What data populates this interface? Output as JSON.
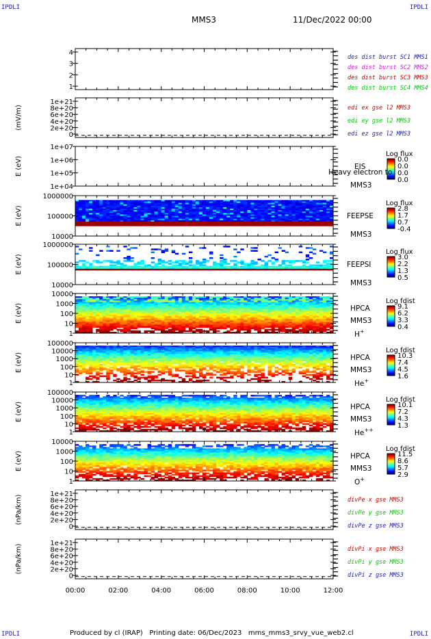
{
  "header": {
    "corner_label": "IPDLI",
    "title": "MMS3",
    "date": "11/Dec/2022 00:00"
  },
  "footer": {
    "produced": "Produced by cl (IRAP)",
    "printing": "Printing date: 06/Dec/2023",
    "file": "mms_mms3_srvy_vue_web2.cl"
  },
  "chart_data": {
    "type": "heatmap",
    "x_ticks": [
      "00:00",
      "02:00",
      "04:00",
      "06:00",
      "08:00",
      "10:00",
      "12:00"
    ],
    "panels": [
      {
        "kind": "lines",
        "ylabel": "",
        "yticks": [
          "4",
          "3",
          "2",
          "1"
        ],
        "legend": [
          {
            "text": "des dist burst SC1 MMS1",
            "color": "#1a1ab4"
          },
          {
            "text": "des dist burst SC2 MMS2",
            "color": "#d21ed2"
          },
          {
            "text": "des dist burst SC3 MMS3",
            "color": "#c80000"
          },
          {
            "text": "des dist burst SC4 MMS4",
            "color": "#00c800"
          }
        ]
      },
      {
        "kind": "lines",
        "ylabel": "(mV/m)",
        "yticks": [
          "1e+21",
          "8e+20",
          "6e+20",
          "4e+20",
          "2e+20",
          "0"
        ],
        "legend": [
          {
            "text": "edi ex gse l2 MMS3",
            "color": "#c80000"
          },
          {
            "text": "edi ey gse l2 MMS3",
            "color": "#00c800"
          },
          {
            "text": "edi ez gse l2 MMS3",
            "color": "#1a1ab4"
          }
        ]
      },
      {
        "kind": "spectro",
        "ylabel": "E (eV)",
        "yticks": [
          "1e+07",
          "1e+06",
          "1e+05",
          "1e+04"
        ],
        "instrument": [
          "EIS",
          "MMS3"
        ],
        "species": "",
        "overlay": "Heavy electron to",
        "cbar_title": "Log flux",
        "cbar_ticks": [
          "0.0",
          "0.0",
          "0.0",
          "0.0"
        ]
      },
      {
        "kind": "spectro",
        "ylabel": "E (eV)",
        "yticks": [
          "1000000",
          "100000",
          "10000"
        ],
        "instrument": [
          "FEEPSE",
          "MMS3"
        ],
        "species": "",
        "cbar_title": "Log flux",
        "cbar_ticks": [
          "2.8",
          "1.7",
          "0.7",
          "-0.4"
        ]
      },
      {
        "kind": "spectro",
        "ylabel": "E (eV)",
        "yticks": [
          "1000000",
          "100000",
          "10000"
        ],
        "instrument": [
          "FEEPSI",
          "MMS3"
        ],
        "species": "",
        "cbar_title": "Log flux",
        "cbar_ticks": [
          "3.0",
          "2.2",
          "1.3",
          "0.5"
        ]
      },
      {
        "kind": "spectro",
        "ylabel": "E (eV)",
        "yticks": [
          "10000",
          "1000",
          "100",
          "10",
          "1"
        ],
        "instrument": [
          "HPCA",
          "MMS3"
        ],
        "species": "H+",
        "cbar_title": "Log fdist",
        "cbar_ticks": [
          "9.1",
          "6.2",
          "3.3",
          "0.4"
        ]
      },
      {
        "kind": "spectro",
        "ylabel": "E (eV)",
        "yticks": [
          "100000",
          "10000",
          "1000",
          "100",
          "10",
          "1"
        ],
        "instrument": [
          "HPCA",
          "MMS3"
        ],
        "species": "He+",
        "cbar_title": "Log fdist",
        "cbar_ticks": [
          "10.3",
          "7.4",
          "4.5",
          "1.6"
        ]
      },
      {
        "kind": "spectro",
        "ylabel": "E (eV)",
        "yticks": [
          "100000",
          "10000",
          "1000",
          "100",
          "10",
          "1"
        ],
        "instrument": [
          "HPCA",
          "MMS3"
        ],
        "species": "He++",
        "cbar_title": "Log fdist",
        "cbar_ticks": [
          "10.1",
          "7.2",
          "4.3",
          "1.3"
        ]
      },
      {
        "kind": "spectro",
        "ylabel": "E (eV)",
        "yticks": [
          "10000",
          "1000",
          "100",
          "10",
          "1"
        ],
        "instrument": [
          "HPCA",
          "MMS3"
        ],
        "species": "O+",
        "cbar_title": "Log fdist",
        "cbar_ticks": [
          "11.5",
          "8.6",
          "5.7",
          "2.9"
        ]
      },
      {
        "kind": "lines",
        "ylabel": "(nPa/km)",
        "yticks": [
          "1e+21",
          "8e+20",
          "6e+20",
          "4e+20",
          "2e+20",
          "0"
        ],
        "legend": [
          {
            "text": "divPe x gse MMS3",
            "color": "#c80000"
          },
          {
            "text": "divPe y gse MMS3",
            "color": "#00c800"
          },
          {
            "text": "divPe z gse MMS3",
            "color": "#1a1ab4"
          }
        ]
      },
      {
        "kind": "lines",
        "ylabel": "(nPa/km)",
        "yticks": [
          "1e+21",
          "8e+20",
          "6e+20",
          "4e+20",
          "2e+20",
          "0"
        ],
        "legend": [
          {
            "text": "divPi x gse MMS3",
            "color": "#c80000"
          },
          {
            "text": "divPi y gse MMS3",
            "color": "#00c800"
          },
          {
            "text": "divPi z gse MMS3",
            "color": "#1a1ab4"
          }
        ]
      }
    ]
  }
}
